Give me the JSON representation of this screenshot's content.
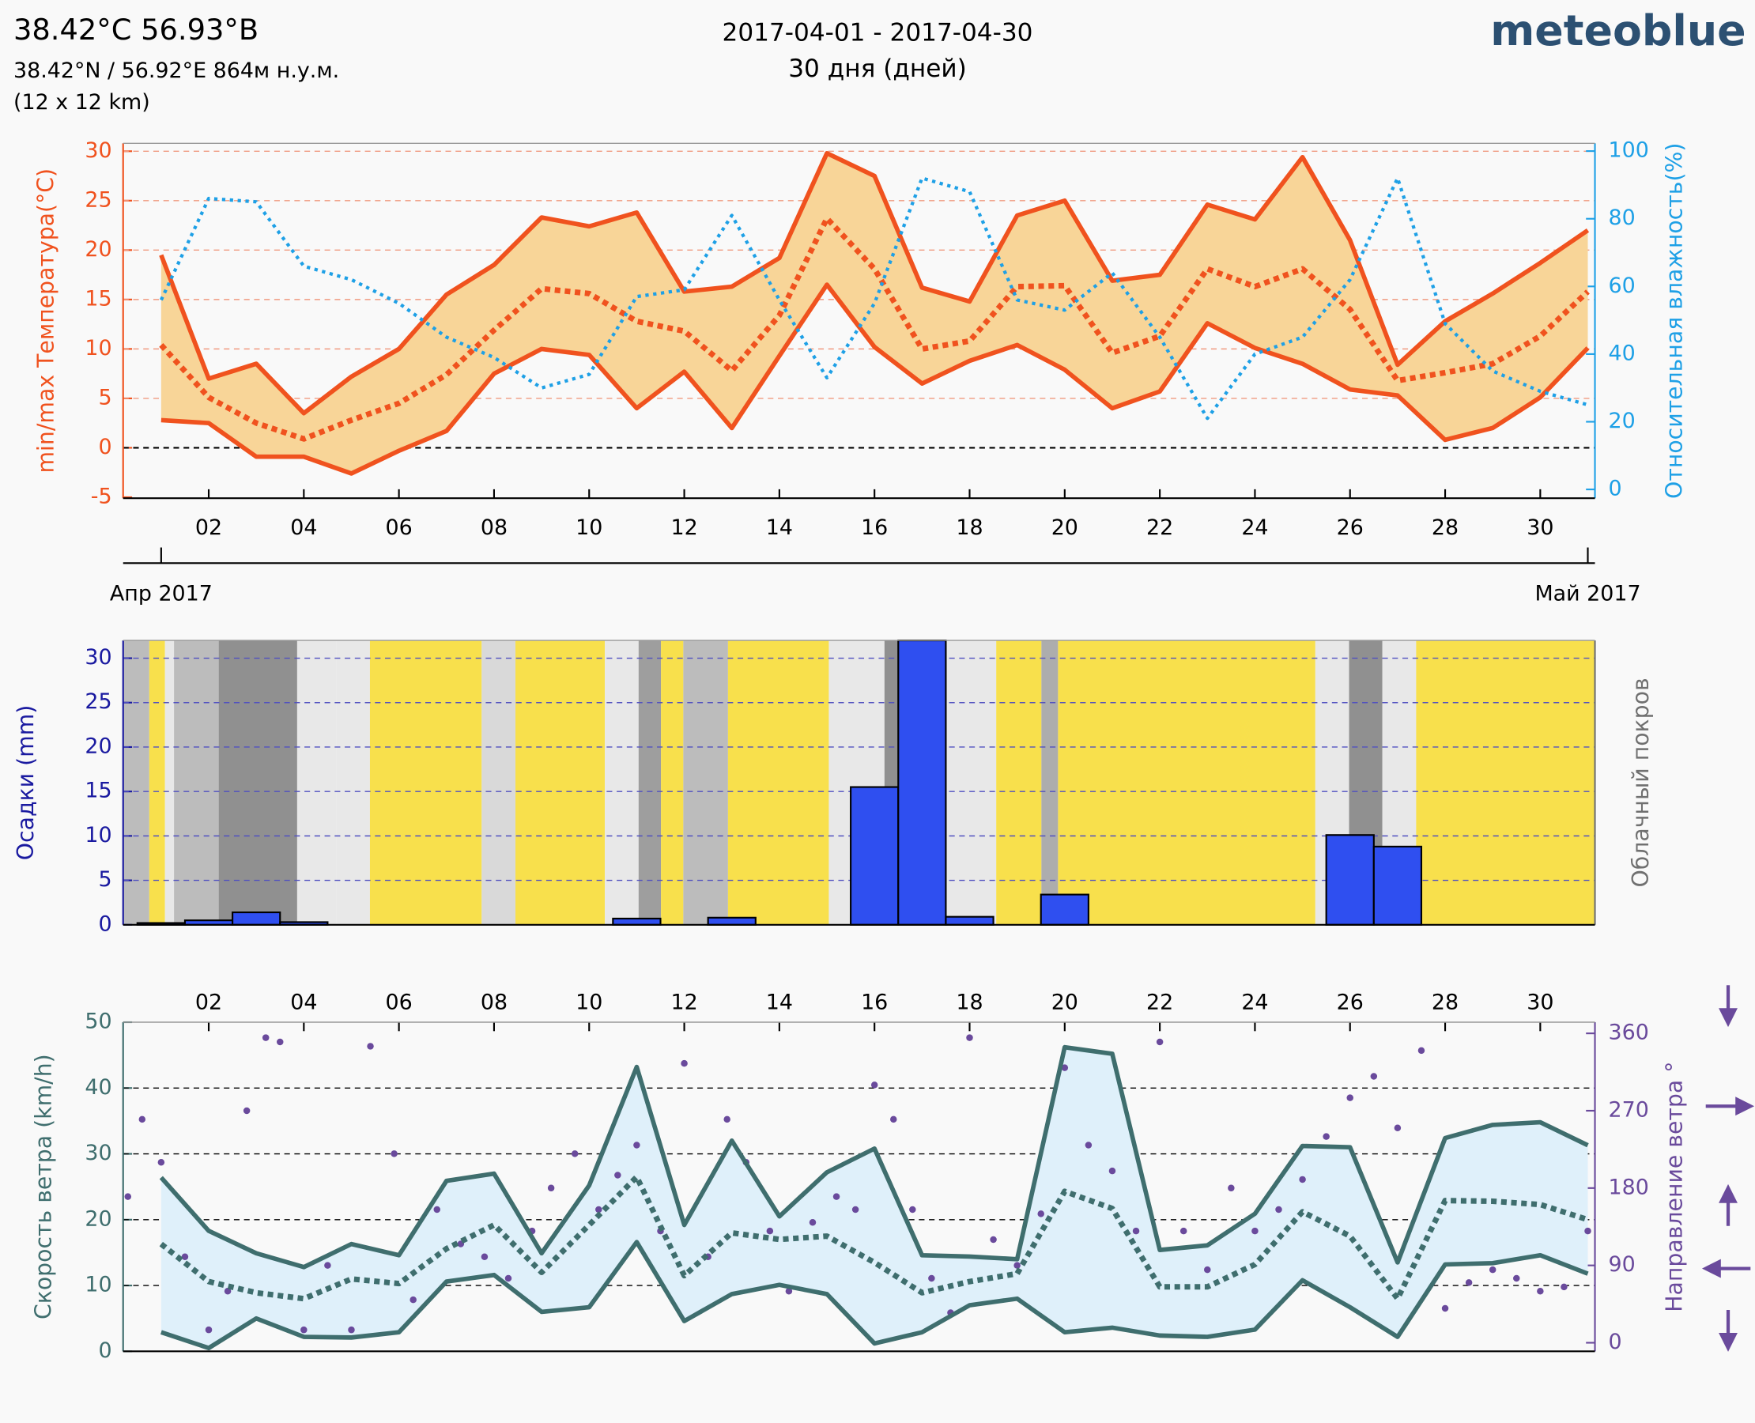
{
  "header": {
    "title": "38.42°C 56.93°B",
    "coords": "38.42°N / 56.92°E   864м н.у.м.",
    "resolution": "(12 x 12 km)",
    "period": "2017-04-01 - 2017-04-30",
    "days": "30 дня (дней)",
    "brand": "meteoblue"
  },
  "chart_data": [
    {
      "type": "line",
      "ylabel": "min/max Температура(°C)",
      "y2label": "Относительная влажность(%)",
      "x": [
        1,
        2,
        3,
        4,
        5,
        6,
        7,
        8,
        9,
        10,
        11,
        12,
        13,
        14,
        15,
        16,
        17,
        18,
        19,
        20,
        21,
        22,
        23,
        24,
        25,
        26,
        27,
        28,
        29,
        30,
        31
      ],
      "series": [
        {
          "color": "#f0521e",
          "dash": "solid",
          "values": [
            19.5,
            7,
            8.5,
            3.5,
            7.2,
            10,
            15.5,
            18.5,
            23.3,
            22.4,
            23.8,
            15.8,
            16.3,
            19.2,
            29.8,
            27.5,
            16.2,
            14.8,
            23.5,
            25,
            16.9,
            17.5,
            24.6,
            23.1,
            29.4,
            21,
            8.4,
            12.8,
            15.6,
            18.7,
            22
          ]
        },
        {
          "color": "#f0521e",
          "dash": "dotted",
          "values": [
            10.4,
            5.1,
            2.5,
            0.9,
            2.8,
            4.5,
            7.4,
            11.9,
            16.1,
            15.6,
            12.8,
            11.8,
            7.8,
            13.4,
            23.2,
            18.1,
            10,
            10.8,
            16.3,
            16.4,
            9.6,
            11.3,
            18.1,
            16.3,
            18.1,
            14,
            6.8,
            7.6,
            8.5,
            11.3,
            15.8
          ]
        },
        {
          "color": "#f0521e",
          "dash": "solid",
          "values": [
            2.8,
            2.5,
            -0.9,
            -0.9,
            -2.6,
            -0.3,
            1.7,
            7.5,
            10,
            9.4,
            4,
            7.7,
            2,
            9.3,
            16.5,
            10.2,
            6.5,
            8.8,
            10.4,
            7.9,
            4,
            5.7,
            12.6,
            10.1,
            8.5,
            5.9,
            5.3,
            0.8,
            2,
            5.1,
            10.1
          ]
        },
        {
          "color": "#1ea0e6",
          "dash": "fine",
          "axis": "y2",
          "values": [
            56,
            86,
            85,
            66,
            62,
            55,
            45,
            39,
            30,
            34,
            57,
            59,
            81,
            56,
            33,
            55,
            92,
            88,
            56,
            53,
            64,
            45,
            21,
            40,
            45,
            62,
            92,
            49,
            35,
            29,
            25
          ]
        }
      ],
      "band": [
        0,
        2
      ],
      "band_color": "#f8d598",
      "xlim": [
        0.2,
        31.15
      ],
      "xticks": [
        {
          "value": 2,
          "label": "02"
        },
        {
          "value": 4,
          "label": "04"
        },
        {
          "value": 6,
          "label": "06"
        },
        {
          "value": 8,
          "label": "08"
        },
        {
          "value": 10,
          "label": "10"
        },
        {
          "value": 12,
          "label": "12"
        },
        {
          "value": 14,
          "label": "14"
        },
        {
          "value": 16,
          "label": "16"
        },
        {
          "value": 18,
          "label": "18"
        },
        {
          "value": 20,
          "label": "20"
        },
        {
          "value": 22,
          "label": "22"
        },
        {
          "value": 24,
          "label": "24"
        },
        {
          "value": 26,
          "label": "26"
        },
        {
          "value": 28,
          "label": "28"
        },
        {
          "value": 30,
          "label": "30"
        }
      ],
      "month_ticks": [
        {
          "value": 1,
          "label": "Апр 2017"
        },
        {
          "value": 31,
          "label": "Май 2017"
        }
      ],
      "ylim": [
        -5.1,
        30.8
      ],
      "yticks": [
        -5,
        0,
        5,
        10,
        15,
        20,
        25,
        30
      ],
      "y2lim": [
        -2.6,
        102.3
      ],
      "y2ticks": [
        0,
        20,
        40,
        60,
        80,
        100
      ],
      "grid": true,
      "grid_color": "#f09a80",
      "zero_line": true,
      "axis_color": "#f0521e",
      "y2_axis_color": "#1ea0e6"
    },
    {
      "type": "bar",
      "ylabel": "Осадки (mm)",
      "y2label": "Облачный покров",
      "x": [
        1,
        2,
        3,
        4,
        5,
        6,
        7,
        8,
        9,
        10,
        11,
        12,
        13,
        14,
        15,
        16,
        17,
        18,
        19,
        20,
        21,
        22,
        23,
        24,
        25,
        26,
        27,
        28,
        29,
        30
      ],
      "values": [
        0.2,
        0.5,
        1.4,
        0.3,
        0,
        0,
        0,
        0,
        0,
        0,
        0.7,
        0,
        0.8,
        0,
        0,
        15.5,
        32,
        0.9,
        0,
        3.4,
        0,
        0,
        0,
        0,
        0,
        10.1,
        8.8,
        0,
        0,
        0
      ],
      "color": "#2f4ff0",
      "cloud_cover": [
        {
          "from": 0.21,
          "to": 0.75,
          "value": 60
        },
        {
          "from": 0.75,
          "to": 1.08,
          "value": 0
        },
        {
          "from": 1.08,
          "to": 1.27,
          "value": 30
        },
        {
          "from": 1.27,
          "to": 2.21,
          "value": 60
        },
        {
          "from": 2.21,
          "to": 3.86,
          "value": 90
        },
        {
          "from": 3.86,
          "to": 4.68,
          "value": 30
        },
        {
          "from": 4.68,
          "to": 5.39,
          "value": 30
        },
        {
          "from": 5.39,
          "to": 7.74,
          "value": 0
        },
        {
          "from": 7.74,
          "to": 8.45,
          "value": 40
        },
        {
          "from": 8.45,
          "to": 10.33,
          "value": 0
        },
        {
          "from": 10.33,
          "to": 11.04,
          "value": 30
        },
        {
          "from": 11.04,
          "to": 11.51,
          "value": 80
        },
        {
          "from": 11.51,
          "to": 11.98,
          "value": 0
        },
        {
          "from": 11.98,
          "to": 12.92,
          "value": 60
        },
        {
          "from": 12.92,
          "to": 15.04,
          "value": 0
        },
        {
          "from": 15.04,
          "to": 16.21,
          "value": 30
        },
        {
          "from": 16.21,
          "to": 17.39,
          "value": 90
        },
        {
          "from": 17.39,
          "to": 18.56,
          "value": 30
        },
        {
          "from": 18.56,
          "to": 19.51,
          "value": 0
        },
        {
          "from": 19.51,
          "to": 19.86,
          "value": 70
        },
        {
          "from": 19.86,
          "to": 25.27,
          "value": 0
        },
        {
          "from": 25.27,
          "to": 25.98,
          "value": 30
        },
        {
          "from": 25.98,
          "to": 26.68,
          "value": 90
        },
        {
          "from": 26.68,
          "to": 27.39,
          "value": 30
        },
        {
          "from": 27.39,
          "to": 31.15,
          "value": 0
        }
      ],
      "clear_color": "#f8e04c",
      "xlim": [
        0.2,
        31.15
      ],
      "ylim": [
        0,
        32
      ],
      "yticks": [
        0,
        5,
        10,
        15,
        20,
        25,
        30
      ],
      "grid": true,
      "grid_color": "#5050c0",
      "axis_color": "#1a1aa0",
      "y2_axis_color": "#707070"
    },
    {
      "type": "line",
      "ylabel": "Скорость ветра (km/h)",
      "y2label": "Направление ветра °",
      "x": [
        1,
        2,
        3,
        4,
        5,
        6,
        7,
        8,
        9,
        10,
        11,
        12,
        13,
        14,
        15,
        16,
        17,
        18,
        19,
        20,
        21,
        22,
        23,
        24,
        25,
        26,
        27,
        28,
        29,
        30,
        31
      ],
      "series": [
        {
          "color": "#3f6e6e",
          "dash": "solid",
          "values": [
            26.4,
            18.3,
            14.9,
            12.8,
            16.3,
            14.6,
            25.9,
            27,
            14.9,
            25.2,
            43.2,
            19.2,
            32,
            20.5,
            27.2,
            30.8,
            14.6,
            14.4,
            14,
            46.2,
            45.2,
            15.4,
            16.1,
            20.9,
            31.2,
            31,
            13.5,
            32.4,
            34.4,
            34.8,
            31.3
          ]
        },
        {
          "color": "#3f6e6e",
          "dash": "dotted",
          "values": [
            16.3,
            10.6,
            8.9,
            8,
            11,
            10.3,
            15.6,
            19.2,
            12,
            19.2,
            26.5,
            11.5,
            18,
            17,
            17.5,
            13.5,
            8.9,
            10.6,
            11.8,
            24.3,
            21.7,
            9.8,
            9.8,
            13.2,
            21.2,
            17.5,
            8,
            22.9,
            22.8,
            22.3,
            20
          ]
        },
        {
          "color": "#3f6e6e",
          "dash": "solid",
          "values": [
            2.9,
            0.5,
            5,
            2.2,
            2.1,
            2.9,
            10.6,
            11.6,
            6,
            6.7,
            16.6,
            4.6,
            8.7,
            10.1,
            8.7,
            1.2,
            2.9,
            7,
            8,
            2.9,
            3.6,
            2.4,
            2.2,
            3.3,
            10.8,
            6.7,
            2.2,
            13.2,
            13.4,
            14.6,
            11.8
          ]
        }
      ],
      "band": [
        0,
        2
      ],
      "band_color": "#dff0fa",
      "direction": {
        "color": "#6a4a9c",
        "x": [
          0.3,
          0.6,
          1.0,
          1.5,
          2.0,
          2.4,
          2.8,
          3.2,
          3.5,
          4.0,
          4.5,
          5.0,
          5.4,
          5.9,
          6.3,
          6.8,
          7.3,
          7.8,
          8.3,
          8.8,
          9.2,
          9.7,
          10.2,
          10.6,
          11.0,
          11.5,
          12.0,
          12.5,
          12.9,
          13.3,
          13.8,
          14.2,
          14.7,
          15.2,
          15.6,
          16.0,
          16.4,
          16.8,
          17.2,
          17.6,
          18.0,
          18.5,
          19.0,
          19.5,
          20.0,
          20.5,
          21.0,
          21.5,
          22.0,
          22.5,
          23.0,
          23.5,
          24.0,
          24.5,
          25.0,
          25.5,
          26.0,
          26.5,
          27.0,
          27.5,
          28.0,
          28.5,
          29.0,
          29.5,
          30.0,
          30.5,
          31.0
        ],
        "values": [
          170,
          260,
          210,
          100,
          15,
          60,
          270,
          355,
          350,
          15,
          90,
          15,
          345,
          220,
          50,
          155,
          115,
          100,
          75,
          130,
          180,
          220,
          155,
          195,
          230,
          130,
          325,
          100,
          260,
          210,
          130,
          60,
          140,
          170,
          155,
          300,
          260,
          155,
          75,
          35,
          355,
          120,
          90,
          150,
          320,
          230,
          200,
          130,
          350,
          130,
          85,
          180,
          130,
          155,
          190,
          240,
          285,
          310,
          250,
          340,
          40,
          70,
          85,
          75,
          60,
          65,
          130
        ]
      },
      "xlim": [
        0.2,
        31.15
      ],
      "xticks": [
        {
          "value": 2,
          "label": "02"
        },
        {
          "value": 4,
          "label": "04"
        },
        {
          "value": 6,
          "label": "06"
        },
        {
          "value": 8,
          "label": "08"
        },
        {
          "value": 10,
          "label": "10"
        },
        {
          "value": 12,
          "label": "12"
        },
        {
          "value": 14,
          "label": "14"
        },
        {
          "value": 16,
          "label": "16"
        },
        {
          "value": 18,
          "label": "18"
        },
        {
          "value": 20,
          "label": "20"
        },
        {
          "value": 22,
          "label": "22"
        },
        {
          "value": 24,
          "label": "24"
        },
        {
          "value": 26,
          "label": "26"
        },
        {
          "value": 28,
          "label": "28"
        },
        {
          "value": 30,
          "label": "30"
        }
      ],
      "ylim": [
        0,
        50
      ],
      "yticks": [
        0,
        10,
        20,
        30,
        40,
        50
      ],
      "y2lim": [
        -10,
        373
      ],
      "y2ticks": [
        0,
        90,
        180,
        270,
        360
      ],
      "grid": true,
      "grid_color": "#000000",
      "axis_color": "#3f6e6e",
      "y2_axis_color": "#6a4a9c"
    }
  ]
}
